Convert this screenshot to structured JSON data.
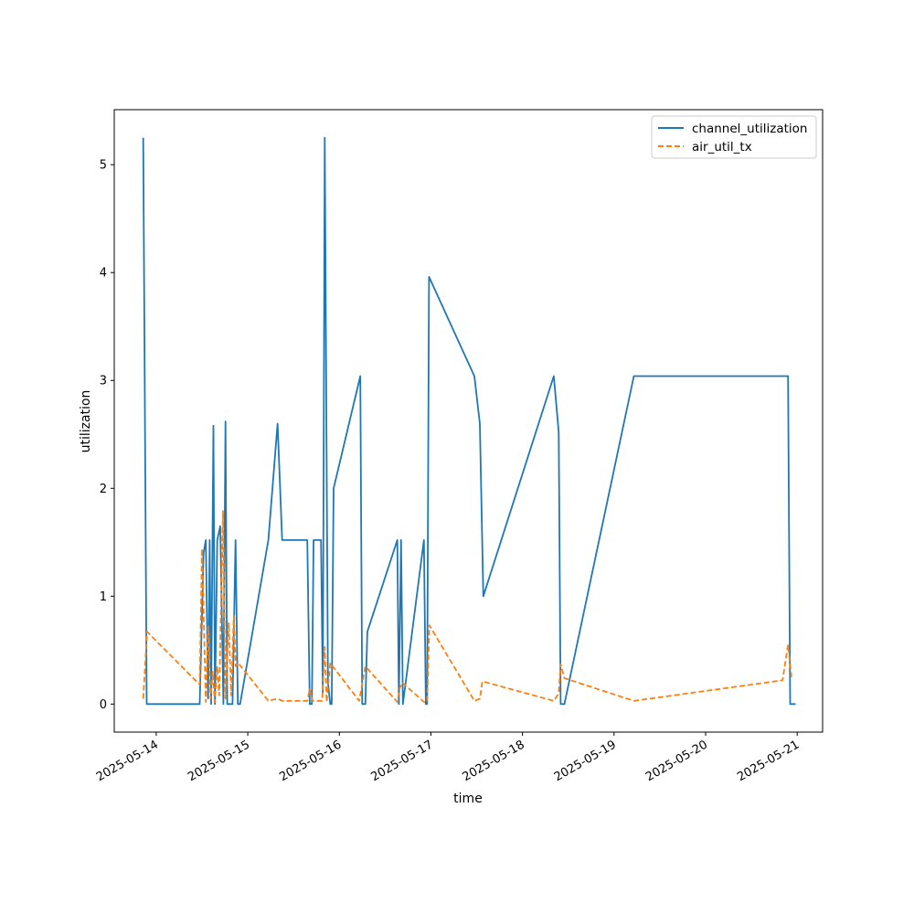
{
  "chart_data": {
    "type": "line",
    "title": "",
    "xlabel": "time",
    "ylabel": "utilization",
    "x_ticks": [
      "2025-05-14",
      "2025-05-15",
      "2025-05-16",
      "2025-05-17",
      "2025-05-18",
      "2025-05-19",
      "2025-05-20",
      "2025-05-21"
    ],
    "y_ticks": [
      0,
      1,
      2,
      3,
      4,
      5
    ],
    "xlim": [
      "2025-05-13 13:00",
      "2025-05-21 06:40"
    ],
    "ylim": [
      -0.26,
      5.51
    ],
    "legend": {
      "position": "top-right",
      "entries": [
        "channel_utilization",
        "air_util_tx"
      ]
    },
    "grid": false,
    "series": [
      {
        "name": "channel_utilization",
        "color": "#1f77b4",
        "style": "solid",
        "points": [
          [
            "2025-05-13 20:36",
            5.25
          ],
          [
            "2025-05-13 21:30",
            0
          ],
          [
            "2025-05-14 11:24",
            0
          ],
          [
            "2025-05-14 12:25",
            1.4
          ],
          [
            "2025-05-14 13:00",
            1.52
          ],
          [
            "2025-05-14 13:36",
            0.05
          ],
          [
            "2025-05-14 14:00",
            1.52
          ],
          [
            "2025-05-14 14:24",
            0
          ],
          [
            "2025-05-14 15:00",
            2.58
          ],
          [
            "2025-05-14 15:24",
            0
          ],
          [
            "2025-05-14 16:00",
            1.52
          ],
          [
            "2025-05-14 16:48",
            1.65
          ],
          [
            "2025-05-14 17:36",
            0
          ],
          [
            "2025-05-14 18:10",
            2.62
          ],
          [
            "2025-05-14 18:36",
            0
          ],
          [
            "2025-05-14 20:00",
            0
          ],
          [
            "2025-05-14 20:48",
            1.52
          ],
          [
            "2025-05-14 21:24",
            0
          ],
          [
            "2025-05-14 22:00",
            0
          ],
          [
            "2025-05-15 05:24",
            1.52
          ],
          [
            "2025-05-15 07:48",
            2.6
          ],
          [
            "2025-05-15 09:00",
            1.52
          ],
          [
            "2025-05-15 15:36",
            1.52
          ],
          [
            "2025-05-15 16:15",
            0
          ],
          [
            "2025-05-15 16:48",
            0
          ],
          [
            "2025-05-15 17:15",
            1.52
          ],
          [
            "2025-05-15 19:12",
            1.52
          ],
          [
            "2025-05-15 19:40",
            0.1
          ],
          [
            "2025-05-15 20:10",
            5.25
          ],
          [
            "2025-05-15 21:00",
            0.2
          ],
          [
            "2025-05-15 21:36",
            0
          ],
          [
            "2025-05-15 22:00",
            0
          ],
          [
            "2025-05-15 22:30",
            2.0
          ],
          [
            "2025-05-16 05:30",
            3.04
          ],
          [
            "2025-05-16 06:00",
            0
          ],
          [
            "2025-05-16 06:48",
            0
          ],
          [
            "2025-05-16 07:20",
            0.67
          ],
          [
            "2025-05-16 15:12",
            1.52
          ],
          [
            "2025-05-16 15:36",
            0
          ],
          [
            "2025-05-16 16:10",
            1.52
          ],
          [
            "2025-05-16 16:40",
            0
          ],
          [
            "2025-05-16 22:10",
            1.52
          ],
          [
            "2025-05-16 22:40",
            0
          ],
          [
            "2025-05-16 23:00",
            0
          ],
          [
            "2025-05-16 23:30",
            3.96
          ],
          [
            "2025-05-17 11:24",
            3.04
          ],
          [
            "2025-05-17 12:50",
            2.6
          ],
          [
            "2025-05-17 13:45",
            1.0
          ],
          [
            "2025-05-18 08:12",
            3.04
          ],
          [
            "2025-05-18 09:30",
            2.52
          ],
          [
            "2025-05-18 10:00",
            0
          ],
          [
            "2025-05-18 11:00",
            0
          ],
          [
            "2025-05-19 05:12",
            3.04
          ],
          [
            "2025-05-20 21:36",
            3.04
          ],
          [
            "2025-05-20 22:10",
            0
          ],
          [
            "2025-05-20 23:36",
            0
          ]
        ]
      },
      {
        "name": "air_util_tx",
        "color": "#ff7f0e",
        "style": "dashed",
        "points": [
          [
            "2025-05-13 20:36",
            0.05
          ],
          [
            "2025-05-13 21:36",
            0.67
          ],
          [
            "2025-05-14 11:24",
            0.18
          ],
          [
            "2025-05-14 12:00",
            1.44
          ],
          [
            "2025-05-14 13:00",
            0.02
          ],
          [
            "2025-05-14 13:36",
            0.72
          ],
          [
            "2025-05-14 14:15",
            0.05
          ],
          [
            "2025-05-14 14:50",
            0.3
          ],
          [
            "2025-05-14 15:20",
            0.02
          ],
          [
            "2025-05-14 16:00",
            0.35
          ],
          [
            "2025-05-14 16:30",
            0.08
          ],
          [
            "2025-05-14 17:30",
            1.79
          ],
          [
            "2025-05-14 18:10",
            0.05
          ],
          [
            "2025-05-14 19:00",
            0.75
          ],
          [
            "2025-05-14 19:40",
            0.08
          ],
          [
            "2025-05-14 20:20",
            0.82
          ],
          [
            "2025-05-14 20:50",
            0.35
          ],
          [
            "2025-05-14 21:30",
            0.38
          ],
          [
            "2025-05-15 05:24",
            0.03
          ],
          [
            "2025-05-15 07:48",
            0.05
          ],
          [
            "2025-05-15 09:00",
            0.03
          ],
          [
            "2025-05-15 15:36",
            0.03
          ],
          [
            "2025-05-15 16:15",
            0.14
          ],
          [
            "2025-05-15 17:00",
            0.03
          ],
          [
            "2025-05-15 19:30",
            0.03
          ],
          [
            "2025-05-15 20:10",
            0.53
          ],
          [
            "2025-05-15 20:40",
            0.02
          ],
          [
            "2025-05-15 21:36",
            0.38
          ],
          [
            "2025-05-16 05:12",
            0.03
          ],
          [
            "2025-05-16 06:48",
            0.35
          ],
          [
            "2025-05-16 15:12",
            0.02
          ],
          [
            "2025-05-16 15:50",
            0.15
          ],
          [
            "2025-05-16 16:30",
            0.2
          ],
          [
            "2025-05-16 22:10",
            0.02
          ],
          [
            "2025-05-16 23:00",
            0.02
          ],
          [
            "2025-05-16 23:36",
            0.73
          ],
          [
            "2025-05-17 11:24",
            0.03
          ],
          [
            "2025-05-17 12:50",
            0.05
          ],
          [
            "2025-05-17 13:30",
            0.21
          ],
          [
            "2025-05-18 08:12",
            0.03
          ],
          [
            "2025-05-18 09:30",
            0.1
          ],
          [
            "2025-05-18 10:00",
            0.37
          ],
          [
            "2025-05-18 11:00",
            0.24
          ],
          [
            "2025-05-19 05:12",
            0.03
          ],
          [
            "2025-05-20 20:10",
            0.22
          ],
          [
            "2025-05-20 21:36",
            0.55
          ],
          [
            "2025-05-20 22:30",
            0.25
          ]
        ]
      }
    ]
  }
}
